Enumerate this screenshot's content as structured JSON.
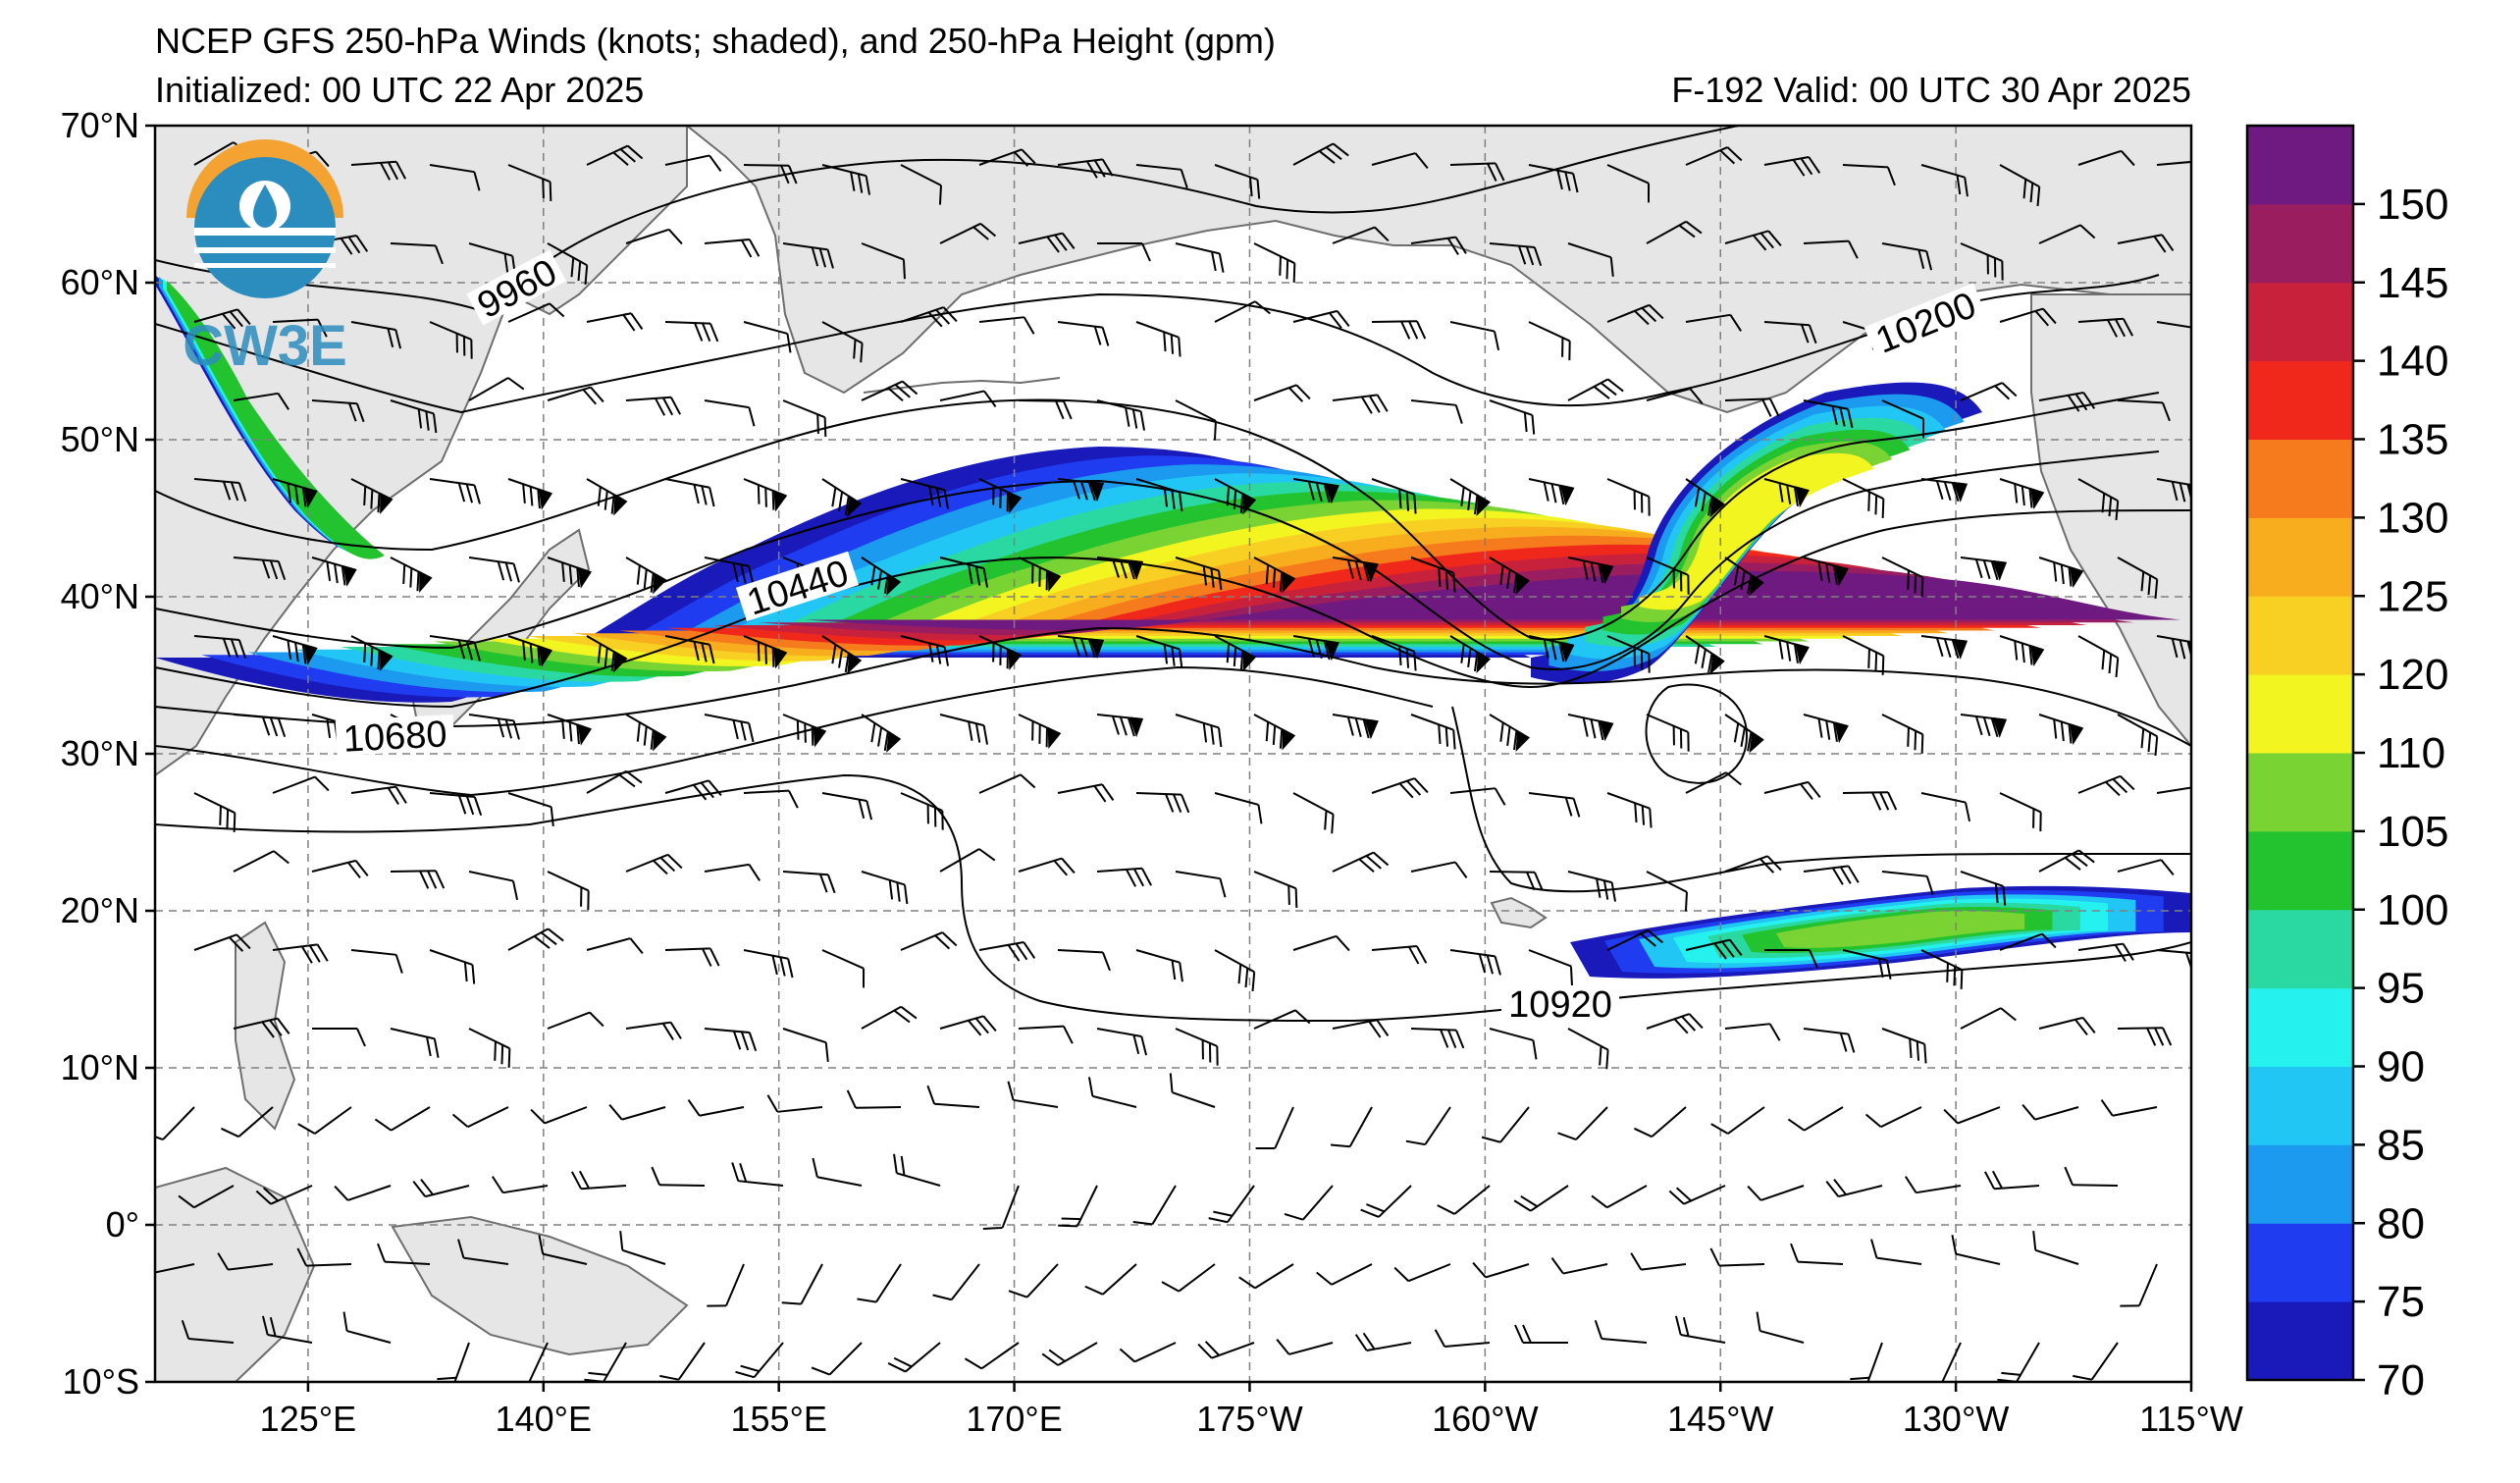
{
  "header": {
    "title": "NCEP GFS 250-hPa Winds (knots; shaded), and 250-hPa Height (gpm)",
    "initialized": "Initialized: 00 UTC 22 Apr 2025",
    "valid": "F-192  Valid: 00 UTC 30 Apr 2025"
  },
  "logo": {
    "text": "CW3E",
    "colors": [
      "#f4a332",
      "#2b8cbe",
      "#1f6fa0"
    ]
  },
  "map": {
    "lon_range": [
      "110°E",
      "115°W"
    ],
    "lat_range": [
      "10°S",
      "70°N"
    ],
    "lat_labels": [
      "70°N",
      "60°N",
      "50°N",
      "40°N",
      "30°N",
      "20°N",
      "10°N",
      "0°",
      "10°S"
    ],
    "lon_labels": [
      "125°E",
      "140°E",
      "155°E",
      "170°E",
      "175°W",
      "160°W",
      "145°W",
      "130°W",
      "115°W"
    ],
    "contour_labels": [
      "9960",
      "10200",
      "10440",
      "10680",
      "10920"
    ],
    "land_color": "#e6e6e6",
    "coast_color": "#6e6e6e",
    "grid": "dashed"
  },
  "colorbar": {
    "labels": [
      "70",
      "75",
      "80",
      "85",
      "90",
      "95",
      "100",
      "105",
      "110",
      "120",
      "125",
      "130",
      "135",
      "140",
      "145",
      "150"
    ],
    "colors": [
      "#1a1aba",
      "#1f3cf0",
      "#1c9af0",
      "#22c6f5",
      "#25f2ee",
      "#2ad9a2",
      "#23c22f",
      "#79d332",
      "#f2f51f",
      "#f8d023",
      "#f8ad1e",
      "#f57b1c",
      "#f0281c",
      "#c8213b",
      "#9a1d5f",
      "#6e1a80"
    ]
  }
}
